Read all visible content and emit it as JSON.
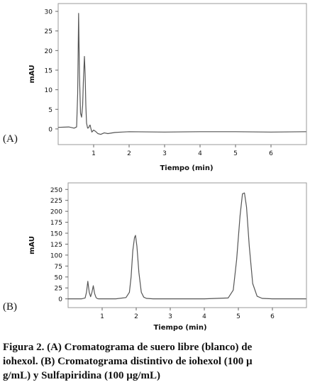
{
  "chart_data": [
    {
      "type": "line",
      "panel_label": "(A)",
      "xlabel": "Tiempo (min)",
      "ylabel": "mAU",
      "xlim": [
        0,
        7
      ],
      "ylim": [
        -4,
        32
      ],
      "xticks": [
        1,
        2,
        3,
        4,
        5,
        6
      ],
      "yticks": [
        0,
        5,
        10,
        15,
        20,
        25,
        30
      ],
      "grid": false,
      "series": [
        {
          "color": "#555555",
          "x": [
            0.0,
            0.3,
            0.45,
            0.52,
            0.55,
            0.575,
            0.6,
            0.63,
            0.66,
            0.69,
            0.71,
            0.74,
            0.76,
            0.78,
            0.8,
            0.83,
            0.86,
            0.88,
            0.9,
            0.92,
            0.95,
            1.0,
            1.05,
            1.12,
            1.2,
            1.3,
            1.4,
            1.6,
            1.8,
            2.0,
            3.0,
            4.0,
            5.0,
            6.0,
            6.99
          ],
          "y": [
            0.4,
            0.5,
            0.2,
            0.5,
            9.0,
            29.5,
            14.0,
            4.0,
            3.0,
            6.0,
            12.0,
            18.5,
            14.0,
            6.0,
            1.5,
            0.2,
            0.3,
            0.8,
            1.0,
            0.2,
            -0.8,
            -0.3,
            -0.6,
            -1.2,
            -1.4,
            -1.0,
            -1.2,
            -0.9,
            -0.8,
            -0.7,
            -0.8,
            -0.7,
            -0.7,
            -0.8,
            -0.7
          ]
        }
      ]
    },
    {
      "type": "line",
      "panel_label": "(B)",
      "xlabel": "Tiempo (min)",
      "ylabel": "mAU",
      "xlim": [
        0,
        7
      ],
      "ylim": [
        -20,
        265
      ],
      "xticks": [
        1,
        2,
        3,
        4,
        5,
        6
      ],
      "yticks": [
        0,
        25,
        50,
        75,
        100,
        125,
        150,
        175,
        200,
        225,
        250
      ],
      "grid": false,
      "series": [
        {
          "color": "#555555",
          "x": [
            0.0,
            0.4,
            0.5,
            0.54,
            0.58,
            0.62,
            0.66,
            0.7,
            0.74,
            0.78,
            0.82,
            0.86,
            0.9,
            1.0,
            1.4,
            1.7,
            1.8,
            1.85,
            1.9,
            1.95,
            1.98,
            2.02,
            2.08,
            2.15,
            2.22,
            2.3,
            2.5,
            3.0,
            4.0,
            4.7,
            4.85,
            4.95,
            5.05,
            5.12,
            5.18,
            5.24,
            5.32,
            5.42,
            5.55,
            5.7,
            6.0,
            6.5,
            6.99
          ],
          "y": [
            0.0,
            0.0,
            2.0,
            15.0,
            40.0,
            15.0,
            5.0,
            15.0,
            30.0,
            12.0,
            3.0,
            0.5,
            0.0,
            0.0,
            0.0,
            3.0,
            15.0,
            50.0,
            110.0,
            140.0,
            145.0,
            120.0,
            60.0,
            15.0,
            4.0,
            1.0,
            0.0,
            0.0,
            0.0,
            2.0,
            20.0,
            90.0,
            190.0,
            240.0,
            242.0,
            210.0,
            120.0,
            35.0,
            6.0,
            1.0,
            0.0,
            0.0,
            0.0
          ]
        }
      ]
    }
  ],
  "caption": {
    "line1_prefix": "Figura 2.",
    "line1_rest": "(A) Cromatograma de suero libre (blanco) de",
    "line2": "iohexol. (B) Cromatograma distintivo de iohexol (100 µ",
    "line3": "g/mL) y Sulfapiridina (100 µg/mL)"
  }
}
